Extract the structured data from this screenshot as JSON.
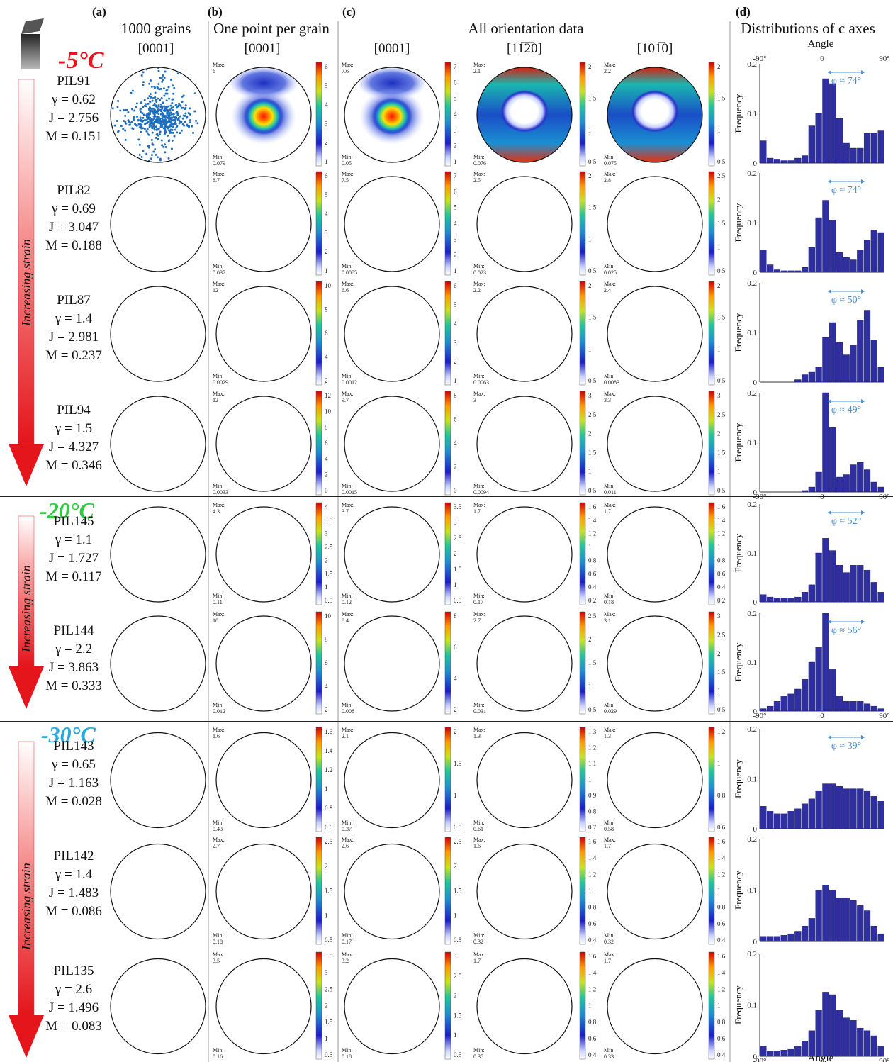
{
  "header": {
    "a": {
      "letter": "(a)",
      "title": "1000 grains",
      "axis": "[0001]"
    },
    "b": {
      "letter": "(b)",
      "title": "One point per grain",
      "axis": "[0001]"
    },
    "c": {
      "letter": "(c)",
      "title": "All orientation data",
      "axis0001": "[0001]",
      "axis1120": "[11̅2̅0]",
      "axis1010": "[101̅0]"
    },
    "d": {
      "letter": "(d)",
      "title": "Distributions of c axes",
      "angle_top": "Angle",
      "angle_bottom": "Angle"
    }
  },
  "strain_arrow_label": "Increasing strain",
  "ylabel": "Frequency",
  "hist_yticks": [
    "0.2",
    "0.1",
    "0"
  ],
  "hist_xticks": [
    "-90°",
    "0",
    "90°"
  ],
  "groups": [
    {
      "temp": "-5°C",
      "color": "#e8141b"
    },
    {
      "temp": "-20°C",
      "color": "#2ecc40"
    },
    {
      "temp": "-30°C",
      "color": "#29a8e0"
    }
  ],
  "samples": [
    {
      "id": "PIL91",
      "gamma": "γ = 0.62",
      "J": "J = 2.756",
      "M": "M = 0.151",
      "b": {
        "max": "Max:\n6",
        "min": "Min:\n0.079",
        "ticks": [
          "6",
          "5",
          "4",
          "3",
          "2",
          "1"
        ]
      },
      "c0001": {
        "max": "Max:\n7.6",
        "min": "Min:\n0.05",
        "ticks": [
          "7",
          "6",
          "5",
          "4",
          "3",
          "2",
          "1"
        ]
      },
      "c1120": {
        "max": "Max:\n2.1",
        "min": "Min:\n0.076",
        "ticks": [
          "2",
          "1.5",
          "1",
          "0.5"
        ]
      },
      "c1010": {
        "max": "Max:\n2.2",
        "min": "Min:\n0.075",
        "ticks": [
          "2",
          "1.5",
          "1",
          "0.5"
        ]
      },
      "phi": "φ ≈ 74°"
    },
    {
      "id": "PIL82",
      "gamma": "γ = 0.69",
      "J": "J = 3.047",
      "M": "M = 0.188",
      "b": {
        "max": "Max:\n8.7",
        "min": "Min:\n0.037",
        "ticks": [
          "6",
          "5",
          "4",
          "3",
          "2",
          "1"
        ]
      },
      "c0001": {
        "max": "Max:\n7.5",
        "min": "Min:\n0.0085",
        "ticks": [
          "7",
          "6",
          "5",
          "4",
          "3",
          "2",
          "1"
        ]
      },
      "c1120": {
        "max": "Max:\n2.5",
        "min": "Min:\n0.023",
        "ticks": [
          "2",
          "1.5",
          "1",
          "0.5"
        ]
      },
      "c1010": {
        "max": "Max:\n2.8",
        "min": "Min:\n0.025",
        "ticks": [
          "2.5",
          "2",
          "1.5",
          "1",
          "0.5"
        ]
      },
      "phi": "φ ≈ 74°"
    },
    {
      "id": "PIL87",
      "gamma": "γ = 1.4",
      "J": "J = 2.981",
      "M": "M = 0.237",
      "b": {
        "max": "Max:\n12",
        "min": "Min:\n0.0029",
        "ticks": [
          "10",
          "8",
          "6",
          "4",
          "2"
        ]
      },
      "c0001": {
        "max": "Max:\n6.6",
        "min": "Min:\n0.0012",
        "ticks": [
          "6",
          "5",
          "4",
          "3",
          "2",
          "1"
        ]
      },
      "c1120": {
        "max": "Max:\n2.2",
        "min": "Min:\n0.0063",
        "ticks": [
          "2",
          "1.5",
          "1",
          "0.5"
        ]
      },
      "c1010": {
        "max": "Max:\n2.4",
        "min": "Min:\n0.0083",
        "ticks": [
          "2",
          "1.5",
          "1",
          "0.5"
        ]
      },
      "phi": "φ ≈ 50°"
    },
    {
      "id": "PIL94",
      "gamma": "γ = 1.5",
      "J": "J = 4.327",
      "M": "M = 0.346",
      "b": {
        "max": "Max:\n12",
        "min": "Min:\n0.0033",
        "ticks": [
          "12",
          "10",
          "8",
          "6",
          "4",
          "2",
          "0"
        ]
      },
      "c0001": {
        "max": "Max:\n9.7",
        "min": "Min:\n0.0015",
        "ticks": [
          "8",
          "6",
          "4",
          "2",
          "0"
        ]
      },
      "c1120": {
        "max": "Max:\n3",
        "min": "Min:\n0.0094",
        "ticks": [
          "3",
          "2.5",
          "2",
          "1.5",
          "1",
          "0.5"
        ]
      },
      "c1010": {
        "max": "Max:\n3.3",
        "min": "Min:\n0.011",
        "ticks": [
          "3",
          "2.5",
          "2",
          "1.5",
          "1",
          "0.5"
        ]
      },
      "phi": "φ ≈ 49°"
    },
    {
      "id": "PIL145",
      "gamma": "γ = 1.1",
      "J": "J = 1.727",
      "M": "M = 0.117",
      "b": {
        "max": "Max:\n4.3",
        "min": "Min:\n0.11",
        "ticks": [
          "4",
          "3.5",
          "3",
          "2.5",
          "2",
          "1.5",
          "1",
          "0.5"
        ]
      },
      "c0001": {
        "max": "Max:\n3.7",
        "min": "Min:\n0.12",
        "ticks": [
          "3.5",
          "3",
          "2.5",
          "2",
          "1.5",
          "1",
          "0.5"
        ]
      },
      "c1120": {
        "max": "Max:\n1.7",
        "min": "Min:\n0.17",
        "ticks": [
          "1.6",
          "1.4",
          "1.2",
          "1",
          "0.8",
          "0.6",
          "0.4",
          "0.2"
        ]
      },
      "c1010": {
        "max": "Max:\n1.7",
        "min": "Min:\n0.18",
        "ticks": [
          "1.6",
          "1.4",
          "1.2",
          "1",
          "0.8",
          "0.6",
          "0.4",
          "0.2"
        ]
      },
      "phi": "φ ≈ 52°"
    },
    {
      "id": "PIL144",
      "gamma": "γ = 2.2",
      "J": "J = 3.863",
      "M": "M = 0.333",
      "b": {
        "max": "Max:\n10",
        "min": "Min:\n0.012",
        "ticks": [
          "10",
          "8",
          "6",
          "4",
          "2"
        ]
      },
      "c0001": {
        "max": "Max:\n8.4",
        "min": "Min:\n0.008",
        "ticks": [
          "8",
          "6",
          "4",
          "2"
        ]
      },
      "c1120": {
        "max": "Max:\n2.7",
        "min": "Min:\n0.031",
        "ticks": [
          "2.5",
          "2",
          "1.5",
          "1",
          "0.5"
        ]
      },
      "c1010": {
        "max": "Max:\n3.1",
        "min": "Min:\n0.029",
        "ticks": [
          "3",
          "2.5",
          "2",
          "1.5",
          "1",
          "0.5"
        ]
      },
      "phi": "φ ≈ 56°"
    },
    {
      "id": "PIL143",
      "gamma": "γ = 0.65",
      "J": "J = 1.163",
      "M": "M = 0.028",
      "b": {
        "max": "Max:\n1.6",
        "min": "Min:\n0.43",
        "ticks": [
          "1.6",
          "1.4",
          "1.2",
          "1",
          "0.8",
          "0.6"
        ]
      },
      "c0001": {
        "max": "Max:\n2.1",
        "min": "Min:\n0.37",
        "ticks": [
          "2",
          "1.5",
          "1",
          "0.5"
        ]
      },
      "c1120": {
        "max": "Max:\n1.3",
        "min": "Min:\n0.61",
        "ticks": [
          "1.3",
          "1.2",
          "1.1",
          "1",
          "0.9",
          "0.8",
          "0.7"
        ]
      },
      "c1010": {
        "max": "Max:\n1.3",
        "min": "Min:\n0.58",
        "ticks": [
          "1.2",
          "1",
          "0.8",
          "0.6"
        ]
      },
      "phi": "φ ≈ 39°"
    },
    {
      "id": "PIL142",
      "gamma": "γ = 1.4",
      "J": "J = 1.483",
      "M": "M = 0.086",
      "b": {
        "max": "Max:\n2.7",
        "min": "Min:\n0.18",
        "ticks": [
          "2.5",
          "2",
          "1.5",
          "1",
          "0.5"
        ]
      },
      "c0001": {
        "max": "Max:\n2.6",
        "min": "Min:\n0.17",
        "ticks": [
          "2.5",
          "2",
          "1.5",
          "1",
          "0.5"
        ]
      },
      "c1120": {
        "max": "Max:\n1.6",
        "min": "Min:\n0.32",
        "ticks": [
          "1.6",
          "1.4",
          "1.2",
          "1",
          "0.8",
          "0.6",
          "0.4"
        ]
      },
      "c1010": {
        "max": "Max:\n1.7",
        "min": "Min:\n0.32",
        "ticks": [
          "1.6",
          "1.4",
          "1.2",
          "1",
          "0.8",
          "0.6",
          "0.4"
        ]
      },
      "phi": ""
    },
    {
      "id": "PIL135",
      "gamma": "γ = 2.6",
      "J": "J = 1.496",
      "M": "M = 0.083",
      "b": {
        "max": "Max:\n3.5",
        "min": "Min:\n0.16",
        "ticks": [
          "3.5",
          "3",
          "2.5",
          "2",
          "1.5",
          "1",
          "0.5"
        ]
      },
      "c0001": {
        "max": "Max:\n3.2",
        "min": "Min:\n0.18",
        "ticks": [
          "3",
          "2.5",
          "2",
          "1.5",
          "1",
          "0.5"
        ]
      },
      "c1120": {
        "max": "Max:\n1.7",
        "min": "Min:\n0.35",
        "ticks": [
          "1.6",
          "1.4",
          "1.2",
          "1",
          "0.8",
          "0.6",
          "0.4"
        ]
      },
      "c1010": {
        "max": "Max:\n1.7",
        "min": "Min:\n0.33",
        "ticks": [
          "1.6",
          "1.4",
          "1.2",
          "1",
          "0.8",
          "0.6",
          "0.4"
        ]
      },
      "phi": ""
    }
  ],
  "chart_data": [
    {
      "type": "bar",
      "sample": "PIL91",
      "xlabel": "Angle",
      "ylabel": "Frequency",
      "ylim": [
        0,
        0.2
      ],
      "xlim": [
        -90,
        90
      ],
      "x": [
        -85,
        -75,
        -65,
        -55,
        -45,
        -35,
        -25,
        -15,
        -5,
        5,
        15,
        25,
        35,
        45,
        55,
        65,
        75,
        85
      ],
      "values": [
        0.045,
        0.01,
        0.008,
        0.005,
        0.005,
        0.01,
        0.015,
        0.075,
        0.1,
        0.17,
        0.16,
        0.09,
        0.04,
        0.03,
        0.03,
        0.06,
        0.06,
        0.065
      ]
    },
    {
      "type": "bar",
      "sample": "PIL82",
      "xlabel": "Angle",
      "ylabel": "Frequency",
      "ylim": [
        0,
        0.2
      ],
      "xlim": [
        -90,
        90
      ],
      "x": [
        -85,
        -75,
        -65,
        -55,
        -45,
        -35,
        -25,
        -15,
        -5,
        5,
        15,
        25,
        35,
        45,
        55,
        65,
        75,
        85
      ],
      "values": [
        0.045,
        0.015,
        0.005,
        0.003,
        0.003,
        0.003,
        0.01,
        0.05,
        0.11,
        0.145,
        0.105,
        0.04,
        0.03,
        0.025,
        0.045,
        0.065,
        0.085,
        0.08
      ]
    },
    {
      "type": "bar",
      "sample": "PIL87",
      "xlabel": "Angle",
      "ylabel": "Frequency",
      "ylim": [
        0,
        0.2
      ],
      "xlim": [
        -90,
        90
      ],
      "x": [
        -85,
        -75,
        -65,
        -55,
        -45,
        -35,
        -25,
        -15,
        -5,
        5,
        15,
        25,
        35,
        45,
        55,
        65,
        75,
        85
      ],
      "values": [
        0,
        0,
        0,
        0,
        0,
        0.005,
        0.015,
        0.02,
        0.03,
        0.09,
        0.12,
        0.08,
        0.055,
        0.075,
        0.125,
        0.145,
        0.085,
        0.03
      ]
    },
    {
      "type": "bar",
      "sample": "PIL94",
      "xlabel": "Angle",
      "ylabel": "Frequency",
      "ylim": [
        0,
        0.2
      ],
      "xlim": [
        -90,
        90
      ],
      "x": [
        -85,
        -75,
        -65,
        -55,
        -45,
        -35,
        -25,
        -15,
        -5,
        5,
        15,
        25,
        35,
        45,
        55,
        65,
        75,
        85
      ],
      "values": [
        0,
        0,
        0,
        0,
        0,
        0,
        0.003,
        0.01,
        0.04,
        0.2,
        0.13,
        0.03,
        0.035,
        0.055,
        0.06,
        0.045,
        0.02,
        0.01
      ]
    },
    {
      "type": "bar",
      "sample": "PIL145",
      "xlabel": "Angle",
      "ylabel": "Frequency",
      "ylim": [
        0,
        0.2
      ],
      "xlim": [
        -90,
        90
      ],
      "x": [
        -85,
        -75,
        -65,
        -55,
        -45,
        -35,
        -25,
        -15,
        -5,
        5,
        15,
        25,
        35,
        45,
        55,
        65,
        75,
        85
      ],
      "values": [
        0.015,
        0.01,
        0.008,
        0.008,
        0.008,
        0.01,
        0.02,
        0.035,
        0.1,
        0.13,
        0.105,
        0.075,
        0.06,
        0.075,
        0.075,
        0.065,
        0.04,
        0.02
      ]
    },
    {
      "type": "bar",
      "sample": "PIL144",
      "xlabel": "Angle",
      "ylabel": "Frequency",
      "ylim": [
        0,
        0.2
      ],
      "xlim": [
        -90,
        90
      ],
      "x": [
        -85,
        -75,
        -65,
        -55,
        -45,
        -35,
        -25,
        -15,
        -5,
        5,
        15,
        25,
        35,
        45,
        55,
        65,
        75,
        85
      ],
      "values": [
        0.005,
        0.01,
        0.02,
        0.03,
        0.035,
        0.045,
        0.065,
        0.1,
        0.13,
        0.2,
        0.085,
        0.03,
        0.02,
        0.02,
        0.02,
        0.015,
        0.01,
        0.005
      ]
    },
    {
      "type": "bar",
      "sample": "PIL143",
      "xlabel": "Angle",
      "ylabel": "Frequency",
      "ylim": [
        0,
        0.2
      ],
      "xlim": [
        -90,
        90
      ],
      "x": [
        -85,
        -75,
        -65,
        -55,
        -45,
        -35,
        -25,
        -15,
        -5,
        5,
        15,
        25,
        35,
        45,
        55,
        65,
        75,
        85
      ],
      "values": [
        0.045,
        0.035,
        0.03,
        0.03,
        0.035,
        0.04,
        0.05,
        0.06,
        0.075,
        0.09,
        0.09,
        0.085,
        0.08,
        0.08,
        0.08,
        0.075,
        0.065,
        0.055
      ]
    },
    {
      "type": "bar",
      "sample": "PIL142",
      "xlabel": "Angle",
      "ylabel": "Frequency",
      "ylim": [
        0,
        0.2
      ],
      "xlim": [
        -90,
        90
      ],
      "x": [
        -85,
        -75,
        -65,
        -55,
        -45,
        -35,
        -25,
        -15,
        -5,
        5,
        15,
        25,
        35,
        45,
        55,
        65,
        75,
        85
      ],
      "values": [
        0.01,
        0.01,
        0.01,
        0.012,
        0.015,
        0.02,
        0.03,
        0.045,
        0.1,
        0.11,
        0.1,
        0.085,
        0.085,
        0.08,
        0.07,
        0.06,
        0.03,
        0.015
      ]
    },
    {
      "type": "bar",
      "sample": "PIL135",
      "xlabel": "Angle",
      "ylabel": "Frequency",
      "ylim": [
        0,
        0.2
      ],
      "xlim": [
        -90,
        90
      ],
      "x": [
        -85,
        -75,
        -65,
        -55,
        -45,
        -35,
        -25,
        -15,
        -5,
        5,
        15,
        25,
        35,
        45,
        55,
        65,
        75,
        85
      ],
      "values": [
        0.02,
        0.01,
        0.01,
        0.012,
        0.015,
        0.02,
        0.03,
        0.05,
        0.09,
        0.125,
        0.12,
        0.09,
        0.075,
        0.07,
        0.055,
        0.05,
        0.04,
        0.02
      ]
    }
  ]
}
